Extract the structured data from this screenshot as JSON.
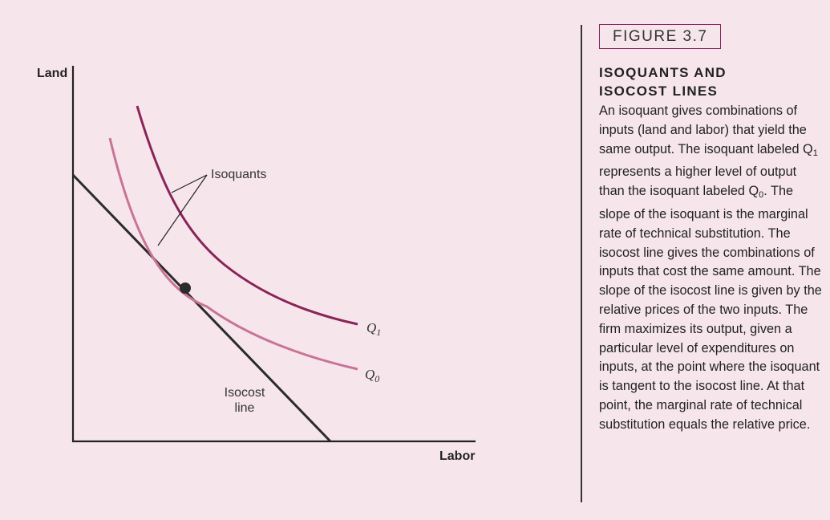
{
  "figure": {
    "number": "FIGURE 3.7",
    "title_line1": "ISOQUANTS AND",
    "title_line2": "ISOCOST LINES",
    "body_part1": "An isoquant gives combinations of inputs (land and labor) that yield the same output. The isoquant labeled Q",
    "body_sub1": "1",
    "body_part2": " represents a higher level of output than the isoquant labeled Q",
    "body_sub2": "0",
    "body_part3": ". The slope of the isoquant is the marginal rate of technical substitution. The isocost line gives the combinations of inputs that cost the same amount. The slope of the isocost line is given by the relative prices of the two inputs. The firm maximizes its output, given a particular level of expenditures on inputs, at the point where the isoquant is tangent to the isocost line. At that point, the marginal rate of technical substitution equals the relative price."
  },
  "diagram": {
    "x_axis_label": "Labor",
    "y_axis_label": "Land",
    "isoquants_label": "Isoquants",
    "isocost_label_line1": "Isocost",
    "isocost_label_line2": "line",
    "q1_letter": "Q",
    "q1_sub": "1",
    "q0_letter": "Q",
    "q0_sub": "0",
    "colors": {
      "background": "#f6e6ec",
      "isoquant_q1": "#8a2458",
      "isoquant_q0": "#c97497",
      "isocost": "#2b2b2b",
      "axis": "#222222"
    }
  }
}
